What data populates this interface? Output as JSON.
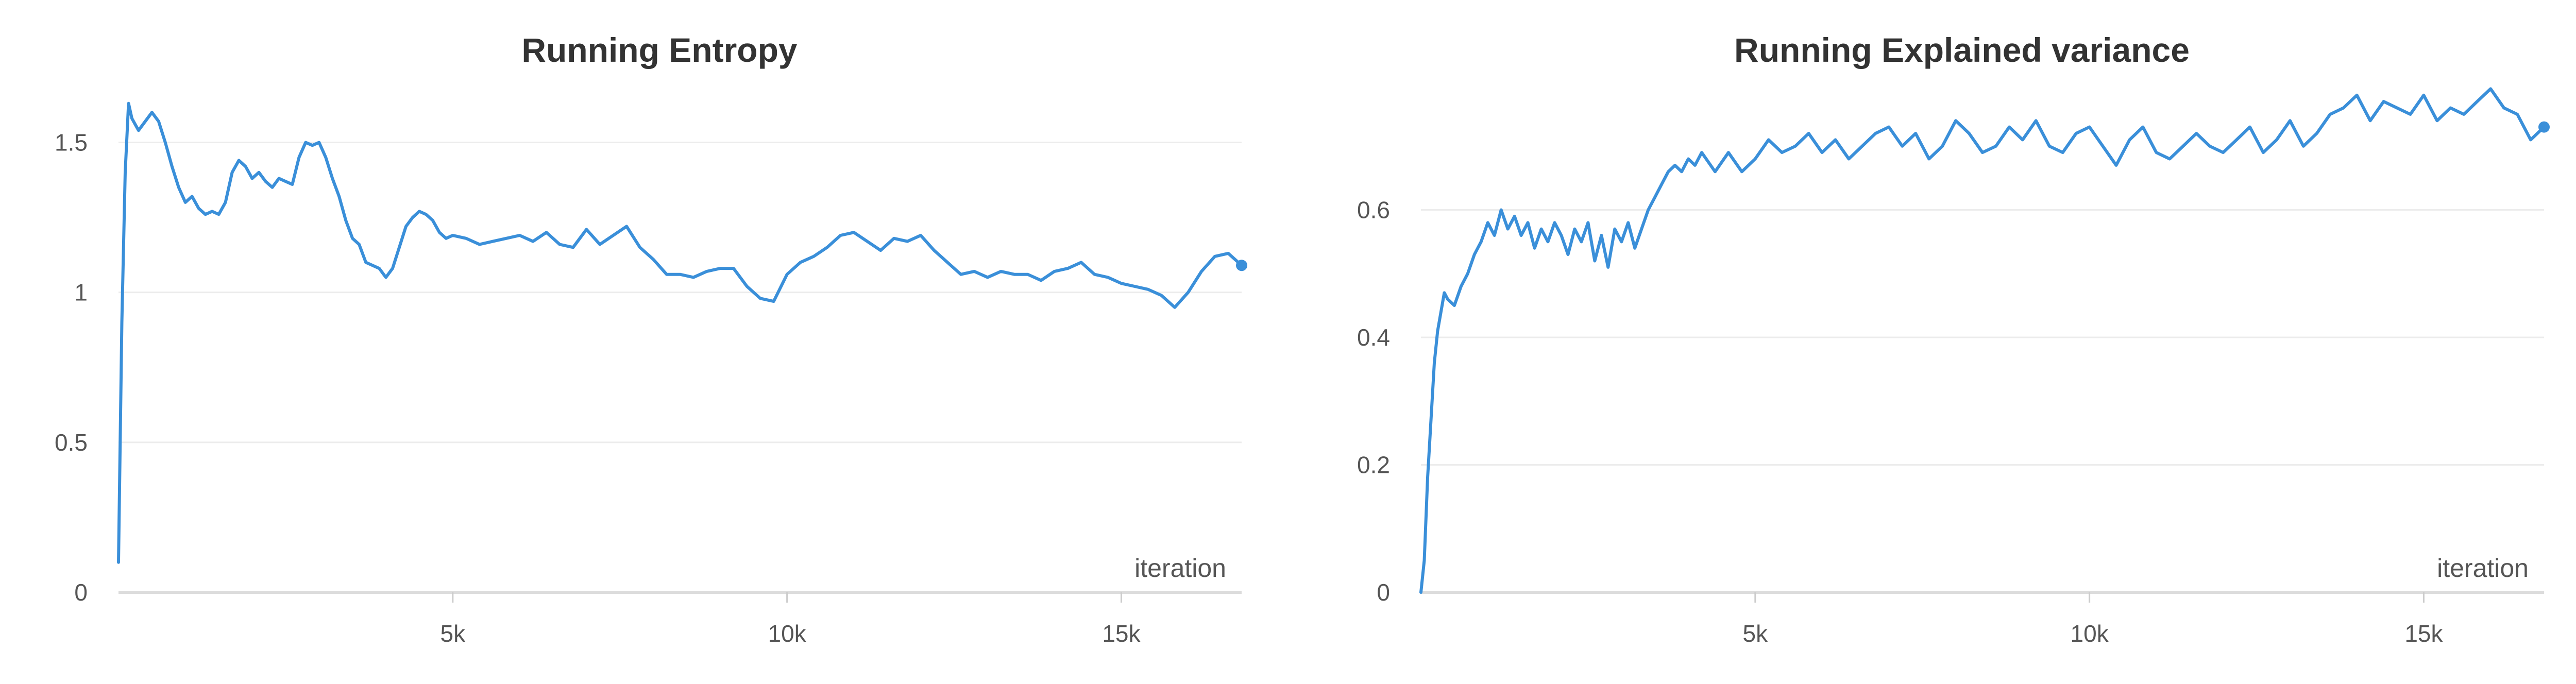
{
  "chart_data": [
    {
      "type": "line",
      "title": "Running Entropy",
      "xlabel": "iteration",
      "ylabel": "",
      "xlim": [
        0,
        16800
      ],
      "ylim": [
        0,
        1.7
      ],
      "grid": true,
      "x_ticks": [
        5000,
        10000,
        15000
      ],
      "x_tick_labels": [
        "5k",
        "10k",
        "15k"
      ],
      "y_ticks": [
        0,
        0.5,
        1,
        1.5
      ],
      "y_tick_labels": [
        "0",
        "0.5",
        "1",
        "1.5"
      ],
      "color": "#3a8fd9",
      "series": [
        {
          "x": [
            0,
            50,
            100,
            150,
            200,
            300,
            400,
            500,
            600,
            700,
            800,
            900,
            1000,
            1100,
            1200,
            1300,
            1400,
            1500,
            1600,
            1700,
            1800,
            1900,
            2000,
            2100,
            2200,
            2300,
            2400,
            2500,
            2600,
            2700,
            2800,
            2900,
            3000,
            3100,
            3200,
            3300,
            3400,
            3500,
            3600,
            3700,
            3800,
            3900,
            4000,
            4100,
            4200,
            4300,
            4400,
            4500,
            4600,
            4700,
            4800,
            4900,
            5000,
            5200,
            5400,
            5600,
            5800,
            6000,
            6200,
            6400,
            6600,
            6800,
            7000,
            7200,
            7400,
            7600,
            7800,
            8000,
            8200,
            8400,
            8600,
            8800,
            9000,
            9200,
            9400,
            9600,
            9800,
            10000,
            10200,
            10400,
            10600,
            10800,
            11000,
            11200,
            11400,
            11600,
            11800,
            12000,
            12200,
            12400,
            12600,
            12800,
            13000,
            13200,
            13400,
            13600,
            13800,
            14000,
            14200,
            14400,
            14600,
            14800,
            15000,
            15200,
            15400,
            15600,
            15800,
            16000,
            16200,
            16400,
            16600,
            16800
          ],
          "y": [
            0.1,
            0.9,
            1.4,
            1.63,
            1.58,
            1.54,
            1.57,
            1.6,
            1.57,
            1.5,
            1.42,
            1.35,
            1.3,
            1.32,
            1.28,
            1.26,
            1.27,
            1.26,
            1.3,
            1.4,
            1.44,
            1.42,
            1.38,
            1.4,
            1.37,
            1.35,
            1.38,
            1.37,
            1.36,
            1.45,
            1.5,
            1.49,
            1.5,
            1.45,
            1.38,
            1.32,
            1.24,
            1.18,
            1.16,
            1.1,
            1.09,
            1.08,
            1.05,
            1.08,
            1.15,
            1.22,
            1.25,
            1.27,
            1.26,
            1.24,
            1.2,
            1.18,
            1.19,
            1.18,
            1.16,
            1.17,
            1.18,
            1.19,
            1.17,
            1.2,
            1.16,
            1.15,
            1.21,
            1.16,
            1.19,
            1.22,
            1.15,
            1.11,
            1.06,
            1.06,
            1.05,
            1.07,
            1.08,
            1.08,
            1.02,
            0.98,
            0.97,
            1.06,
            1.1,
            1.12,
            1.15,
            1.19,
            1.2,
            1.17,
            1.14,
            1.18,
            1.17,
            1.19,
            1.14,
            1.1,
            1.06,
            1.07,
            1.05,
            1.07,
            1.06,
            1.06,
            1.04,
            1.07,
            1.08,
            1.1,
            1.06,
            1.05,
            1.03,
            1.02,
            1.01,
            0.99,
            0.95,
            1.0,
            1.07,
            1.12,
            1.13,
            1.09
          ]
        }
      ]
    },
    {
      "type": "line",
      "title": "Running Explained variance",
      "xlabel": "iteration",
      "ylabel": "",
      "xlim": [
        0,
        16800
      ],
      "ylim": [
        0,
        0.8
      ],
      "grid": true,
      "x_ticks": [
        5000,
        10000,
        15000
      ],
      "x_tick_labels": [
        "5k",
        "10k",
        "15k"
      ],
      "y_ticks": [
        0,
        0.2,
        0.4,
        0.6
      ],
      "y_tick_labels": [
        "0",
        "0.2",
        "0.4",
        "0.6"
      ],
      "color": "#3a8fd9",
      "series": [
        {
          "x": [
            0,
            50,
            100,
            150,
            200,
            250,
            300,
            350,
            400,
            500,
            600,
            700,
            800,
            900,
            1000,
            1100,
            1200,
            1300,
            1400,
            1500,
            1600,
            1700,
            1800,
            1900,
            2000,
            2100,
            2200,
            2300,
            2400,
            2500,
            2600,
            2700,
            2800,
            2900,
            3000,
            3100,
            3200,
            3300,
            3400,
            3500,
            3600,
            3700,
            3800,
            3900,
            4000,
            4100,
            4200,
            4400,
            4600,
            4800,
            5000,
            5200,
            5400,
            5600,
            5800,
            6000,
            6200,
            6400,
            6600,
            6800,
            7000,
            7200,
            7400,
            7600,
            7800,
            8000,
            8200,
            8400,
            8600,
            8800,
            9000,
            9200,
            9400,
            9600,
            9800,
            10000,
            10200,
            10400,
            10600,
            10800,
            11000,
            11200,
            11400,
            11600,
            11800,
            12000,
            12200,
            12400,
            12600,
            12800,
            13000,
            13200,
            13400,
            13600,
            13800,
            14000,
            14200,
            14400,
            14600,
            14800,
            15000,
            15200,
            15400,
            15600,
            15800,
            16000,
            16200,
            16400,
            16600,
            16800
          ],
          "y": [
            0,
            0.05,
            0.18,
            0.27,
            0.36,
            0.41,
            0.44,
            0.47,
            0.46,
            0.45,
            0.48,
            0.5,
            0.53,
            0.55,
            0.58,
            0.56,
            0.6,
            0.57,
            0.59,
            0.56,
            0.58,
            0.54,
            0.57,
            0.55,
            0.58,
            0.56,
            0.53,
            0.57,
            0.55,
            0.58,
            0.52,
            0.56,
            0.51,
            0.57,
            0.55,
            0.58,
            0.54,
            0.57,
            0.6,
            0.62,
            0.64,
            0.66,
            0.67,
            0.66,
            0.68,
            0.67,
            0.69,
            0.66,
            0.69,
            0.66,
            0.68,
            0.71,
            0.69,
            0.7,
            0.72,
            0.69,
            0.71,
            0.68,
            0.7,
            0.72,
            0.73,
            0.7,
            0.72,
            0.68,
            0.7,
            0.74,
            0.72,
            0.69,
            0.7,
            0.73,
            0.71,
            0.74,
            0.7,
            0.69,
            0.72,
            0.73,
            0.7,
            0.67,
            0.71,
            0.73,
            0.69,
            0.68,
            0.7,
            0.72,
            0.7,
            0.69,
            0.71,
            0.73,
            0.69,
            0.71,
            0.74,
            0.7,
            0.72,
            0.75,
            0.76,
            0.78,
            0.74,
            0.77,
            0.76,
            0.75,
            0.78,
            0.74,
            0.76,
            0.75,
            0.77,
            0.79,
            0.76,
            0.75,
            0.71,
            0.73
          ]
        }
      ]
    }
  ]
}
